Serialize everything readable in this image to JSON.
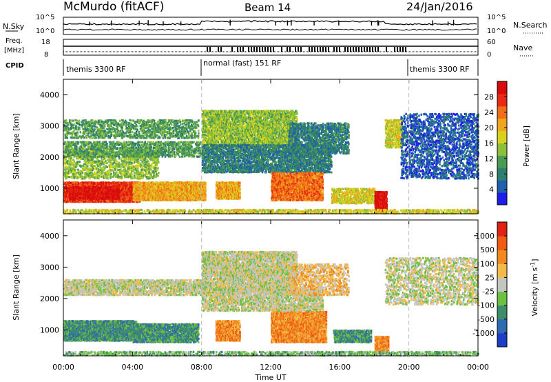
{
  "header": {
    "station": "McMurdo (fitACF)",
    "beam": "Beam 14",
    "date": "24/Jan/2016"
  },
  "top_panels": {
    "nsky_label": "N.Sky",
    "nsky_ticks": [
      "10^5",
      "10^0"
    ],
    "nsearch_label": "N.Search",
    "nsearch_ticks": [
      "10^5",
      "10^0"
    ],
    "freq_label_1": "Freq.",
    "freq_label_2": "[MHz]",
    "freq_ticks": [
      "18",
      "8"
    ],
    "nave_label": "Nave",
    "nave_ticks": [
      "60",
      "0"
    ],
    "cpid_label": "CPID",
    "cpid_segments": [
      {
        "label": "themis 3300 RF",
        "start_hour": 0,
        "end_hour": 8
      },
      {
        "label": "normal (fast) 151 RF",
        "start_hour": 8,
        "end_hour": 20
      },
      {
        "label": "themis 3300 RF",
        "start_hour": 20,
        "end_hour": 24
      }
    ]
  },
  "chart_data": [
    {
      "type": "heatmap",
      "title": "Power",
      "ylabel": "Slant Range [km]",
      "xlabel": "",
      "x_range_hours": [
        0,
        24
      ],
      "ylim": [
        180,
        4500
      ],
      "yticks": [
        1000,
        2000,
        3000,
        4000
      ],
      "colorbar_label": "Power [dB]",
      "colorbar_ticks": [
        "4",
        "8",
        "12",
        "16",
        "20",
        "24",
        "28"
      ],
      "colorbar_colors": [
        "#1e1ee8",
        "#1f5fb0",
        "#2e7f70",
        "#4d9a52",
        "#8cbf3a",
        "#d6d21e",
        "#f0a51c",
        "#f06e18",
        "#e82a12",
        "#d80c0c"
      ],
      "scatter_regions": [
        {
          "t0": 0.0,
          "t1": 4.4,
          "r0": 550,
          "r1": 1200,
          "level": 8,
          "density": 0.85
        },
        {
          "t0": 0.3,
          "t1": 3.2,
          "r0": 650,
          "r1": 1050,
          "level": 9,
          "density": 0.6
        },
        {
          "t0": 4.0,
          "t1": 8.2,
          "r0": 600,
          "r1": 1200,
          "level": 6,
          "density": 0.8
        },
        {
          "t0": 0.0,
          "t1": 5.5,
          "r0": 1300,
          "r1": 2200,
          "level": 4,
          "density": 0.35
        },
        {
          "t0": 0.0,
          "t1": 8.0,
          "r0": 2000,
          "r1": 2500,
          "level": 3,
          "density": 0.45
        },
        {
          "t0": 0.0,
          "t1": 7.8,
          "r0": 2600,
          "r1": 3200,
          "level": 3,
          "density": 0.35
        },
        {
          "t0": 8.0,
          "t1": 13.5,
          "r0": 2300,
          "r1": 3500,
          "level": 4,
          "density": 0.6
        },
        {
          "t0": 8.0,
          "t1": 15.5,
          "r0": 1500,
          "r1": 2400,
          "level": 2,
          "density": 0.55
        },
        {
          "t0": 8.8,
          "t1": 10.2,
          "r0": 650,
          "r1": 1200,
          "level": 6,
          "density": 0.85
        },
        {
          "t0": 12.0,
          "t1": 15.0,
          "r0": 600,
          "r1": 1500,
          "level": 7,
          "density": 0.75
        },
        {
          "t0": 13.0,
          "t1": 16.5,
          "r0": 2100,
          "r1": 3100,
          "level": 2,
          "density": 0.45
        },
        {
          "t0": 15.5,
          "t1": 18.0,
          "r0": 500,
          "r1": 1000,
          "level": 5,
          "density": 0.55
        },
        {
          "t0": 18.0,
          "t1": 18.7,
          "r0": 200,
          "r1": 900,
          "level": 9,
          "density": 0.9
        },
        {
          "t0": 18.6,
          "t1": 19.6,
          "r0": 2300,
          "r1": 3200,
          "level": 5,
          "density": 0.55
        },
        {
          "t0": 19.5,
          "t1": 24.0,
          "r0": 1300,
          "r1": 3400,
          "level": 1,
          "density": 0.3
        },
        {
          "t0": 0.0,
          "t1": 24.0,
          "r0": 180,
          "r1": 320,
          "level": 5,
          "density": 0.45
        }
      ]
    },
    {
      "type": "heatmap",
      "title": "Velocity",
      "ylabel": "Slant Range [km]",
      "xlabel": "Time UT",
      "x_range_hours": [
        0,
        24
      ],
      "xticks": [
        "00:00",
        "04:00",
        "08:00",
        "12:00",
        "16:00",
        "20:00",
        "00:00"
      ],
      "ylim": [
        180,
        4500
      ],
      "yticks": [
        1000,
        2000,
        3000,
        4000
      ],
      "colorbar_label": "Velocity [m s^-1]",
      "colorbar_ticks": [
        "1000",
        "500",
        "100",
        "25",
        "-25",
        "-100",
        "-500",
        "-1000"
      ],
      "colorbar_colors": [
        "#1e3ec8",
        "#2f6bb0",
        "#3f8c6a",
        "#6cc042",
        "#c4c4c0",
        "#f3ba4a",
        "#f08a1e",
        "#f05a14",
        "#e02212"
      ],
      "scatter_regions": [
        {
          "t0": 0.0,
          "t1": 4.2,
          "r0": 650,
          "r1": 1300,
          "level": 2,
          "density": 0.9
        },
        {
          "t0": 4.0,
          "t1": 7.8,
          "r0": 600,
          "r1": 1200,
          "level": 2,
          "density": 0.75
        },
        {
          "t0": 8.8,
          "t1": 10.2,
          "r0": 650,
          "r1": 1300,
          "level": 6,
          "density": 0.85
        },
        {
          "t0": 12.0,
          "t1": 15.2,
          "r0": 600,
          "r1": 1600,
          "level": 6,
          "density": 0.8
        },
        {
          "t0": 15.6,
          "t1": 17.8,
          "r0": 600,
          "r1": 1000,
          "level": 2,
          "density": 0.7
        },
        {
          "t0": 18.0,
          "t1": 18.8,
          "r0": 200,
          "r1": 800,
          "level": 6,
          "density": 0.8
        },
        {
          "t0": 0.0,
          "t1": 8.0,
          "r0": 2100,
          "r1": 2600,
          "level": 4,
          "density": 0.55
        },
        {
          "t0": 8.0,
          "t1": 13.5,
          "r0": 2200,
          "r1": 3500,
          "level": 4,
          "density": 0.65
        },
        {
          "t0": 8.0,
          "t1": 15.0,
          "r0": 1600,
          "r1": 2300,
          "level": 4,
          "density": 0.5
        },
        {
          "t0": 13.0,
          "t1": 16.5,
          "r0": 2100,
          "r1": 3100,
          "level": 5,
          "density": 0.35
        },
        {
          "t0": 18.6,
          "t1": 24.0,
          "r0": 1800,
          "r1": 3300,
          "level": 4,
          "density": 0.3
        },
        {
          "t0": 0.0,
          "t1": 24.0,
          "r0": 180,
          "r1": 320,
          "level": 3,
          "density": 0.45
        }
      ]
    }
  ]
}
